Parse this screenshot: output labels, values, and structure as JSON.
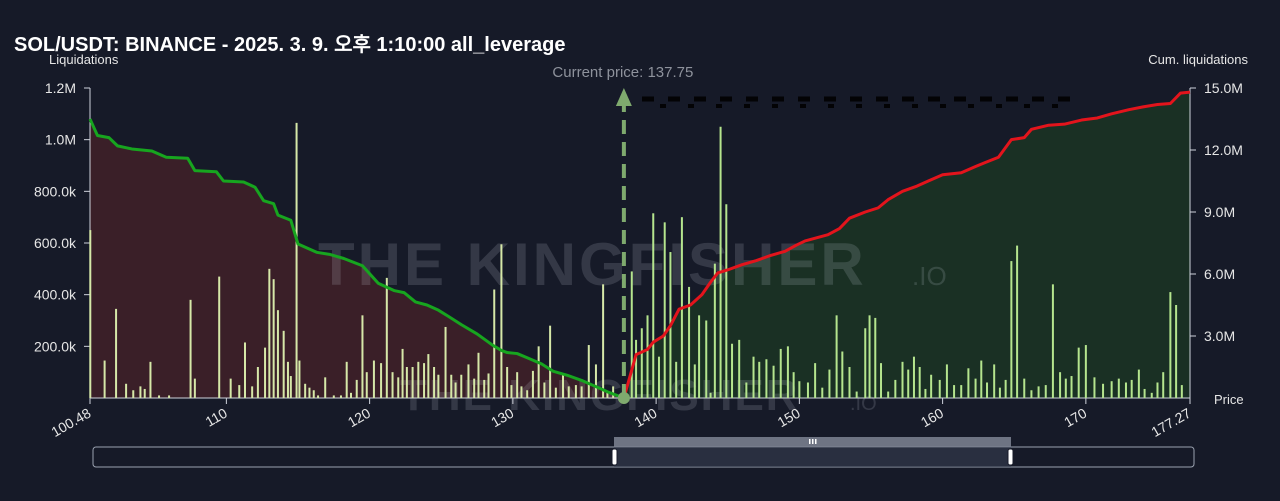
{
  "header": {
    "title": "SOL/USDT: BINANCE - 2025. 3. 9. 오후 1:10:00 all_leverage"
  },
  "watermark": {
    "brand": "THE KINGFISHER",
    "suffix": ".IO"
  },
  "colors": {
    "background": "#161a28",
    "bars": "#d6e8a8",
    "bars_right": "#b5e58e",
    "cum_left": "#17a51f",
    "cum_right": "#e3141c",
    "fill_left": "#3a1f28",
    "fill_right": "#1a3024",
    "price_line": "#7faa6e"
  },
  "chart_data": {
    "type": "bar",
    "title": "SOL/USDT: BINANCE - 2025. 3. 9. 오후 1:10:00 all_leverage",
    "ylabel": "Liquidations",
    "y2label": "Cum. liquidations",
    "xlabel": "Price",
    "xlim": [
      100.48,
      177.27
    ],
    "ylim": [
      0,
      1200000
    ],
    "y2lim": [
      0,
      15000000
    ],
    "yticks": [
      200000,
      400000,
      600000,
      800000,
      1000000,
      1200000
    ],
    "ytick_labels": [
      "200.0k",
      "400.0k",
      "600.0k",
      "800.0k",
      "1.0M",
      "1.2M"
    ],
    "y2ticks": [
      3000000,
      6000000,
      9000000,
      12000000,
      15000000
    ],
    "y2tick_labels": [
      "3.0M",
      "6.0M",
      "9.0M",
      "12.0M",
      "15.0M"
    ],
    "xticks": [
      110,
      120,
      130,
      140,
      150,
      160,
      170
    ],
    "xtick_labels": [
      "110",
      "120",
      "130",
      "140",
      "150",
      "160",
      "170"
    ],
    "x_end_labels": [
      "100.48",
      "177.27"
    ],
    "current_price": 137.75,
    "current_price_label": "Current price: 137.75",
    "bars": [
      [
        100.5,
        650000
      ],
      [
        101.5,
        145000
      ],
      [
        102.3,
        345000
      ],
      [
        103.0,
        55000
      ],
      [
        103.5,
        30000
      ],
      [
        104.0,
        45000
      ],
      [
        104.3,
        35000
      ],
      [
        104.7,
        140000
      ],
      [
        105.3,
        10000
      ],
      [
        106.0,
        10000
      ],
      [
        107.5,
        380000
      ],
      [
        107.8,
        75000
      ],
      [
        109.5,
        470000
      ],
      [
        110.3,
        75000
      ],
      [
        110.9,
        50000
      ],
      [
        111.3,
        215000
      ],
      [
        111.8,
        45000
      ],
      [
        112.2,
        120000
      ],
      [
        112.7,
        195000
      ],
      [
        113.0,
        500000
      ],
      [
        113.3,
        460000
      ],
      [
        113.6,
        340000
      ],
      [
        114.0,
        260000
      ],
      [
        114.3,
        140000
      ],
      [
        114.5,
        85000
      ],
      [
        114.9,
        1065000
      ],
      [
        115.1,
        145000
      ],
      [
        115.5,
        55000
      ],
      [
        115.8,
        40000
      ],
      [
        116.1,
        30000
      ],
      [
        116.4,
        10000
      ],
      [
        116.9,
        80000
      ],
      [
        117.5,
        10000
      ],
      [
        118.0,
        10000
      ],
      [
        118.4,
        140000
      ],
      [
        118.7,
        20000
      ],
      [
        119.1,
        70000
      ],
      [
        119.5,
        320000
      ],
      [
        119.8,
        100000
      ],
      [
        120.3,
        145000
      ],
      [
        120.8,
        135000
      ],
      [
        121.2,
        465000
      ],
      [
        121.6,
        100000
      ],
      [
        122.0,
        80000
      ],
      [
        122.3,
        190000
      ],
      [
        122.6,
        120000
      ],
      [
        123.0,
        120000
      ],
      [
        123.4,
        140000
      ],
      [
        123.8,
        135000
      ],
      [
        124.1,
        170000
      ],
      [
        124.5,
        120000
      ],
      [
        124.8,
        90000
      ],
      [
        125.3,
        275000
      ],
      [
        125.7,
        90000
      ],
      [
        126.0,
        60000
      ],
      [
        126.4,
        90000
      ],
      [
        126.9,
        130000
      ],
      [
        127.3,
        75000
      ],
      [
        127.6,
        175000
      ],
      [
        128.0,
        70000
      ],
      [
        128.3,
        95000
      ],
      [
        128.7,
        420000
      ],
      [
        129.2,
        595000
      ],
      [
        129.6,
        120000
      ],
      [
        129.9,
        50000
      ],
      [
        130.3,
        100000
      ],
      [
        130.6,
        45000
      ],
      [
        131.0,
        30000
      ],
      [
        131.4,
        105000
      ],
      [
        131.8,
        200000
      ],
      [
        132.2,
        60000
      ],
      [
        132.6,
        280000
      ],
      [
        133.0,
        40000
      ],
      [
        133.5,
        90000
      ],
      [
        133.9,
        45000
      ],
      [
        134.4,
        50000
      ],
      [
        134.8,
        45000
      ],
      [
        135.3,
        205000
      ],
      [
        135.8,
        130000
      ],
      [
        136.3,
        440000
      ],
      [
        136.6,
        20000
      ],
      [
        137.0,
        45000
      ],
      [
        137.6,
        20000
      ],
      [
        137.9,
        20000
      ],
      [
        138.3,
        490000
      ],
      [
        138.6,
        225000
      ],
      [
        139.0,
        270000
      ],
      [
        139.4,
        320000
      ],
      [
        139.8,
        715000
      ],
      [
        140.2,
        160000
      ],
      [
        140.6,
        680000
      ],
      [
        141.0,
        565000
      ],
      [
        141.4,
        140000
      ],
      [
        141.8,
        700000
      ],
      [
        142.3,
        430000
      ],
      [
        142.7,
        130000
      ],
      [
        143.0,
        320000
      ],
      [
        143.5,
        300000
      ],
      [
        143.8,
        20000
      ],
      [
        144.1,
        520000
      ],
      [
        144.5,
        1050000
      ],
      [
        144.9,
        750000
      ],
      [
        145.3,
        210000
      ],
      [
        145.8,
        225000
      ],
      [
        146.3,
        60000
      ],
      [
        146.8,
        160000
      ],
      [
        147.2,
        140000
      ],
      [
        147.7,
        150000
      ],
      [
        148.2,
        125000
      ],
      [
        148.7,
        190000
      ],
      [
        149.2,
        200000
      ],
      [
        149.6,
        100000
      ],
      [
        150.0,
        65000
      ],
      [
        150.6,
        60000
      ],
      [
        151.1,
        135000
      ],
      [
        151.6,
        40000
      ],
      [
        152.1,
        110000
      ],
      [
        152.6,
        320000
      ],
      [
        153.0,
        180000
      ],
      [
        153.5,
        120000
      ],
      [
        154.0,
        25000
      ],
      [
        154.6,
        270000
      ],
      [
        154.9,
        320000
      ],
      [
        155.3,
        310000
      ],
      [
        155.7,
        135000
      ],
      [
        156.2,
        25000
      ],
      [
        156.7,
        70000
      ],
      [
        157.2,
        140000
      ],
      [
        157.6,
        110000
      ],
      [
        158.0,
        160000
      ],
      [
        158.4,
        120000
      ],
      [
        158.8,
        35000
      ],
      [
        159.2,
        90000
      ],
      [
        159.8,
        70000
      ],
      [
        160.3,
        130000
      ],
      [
        160.8,
        50000
      ],
      [
        161.3,
        50000
      ],
      [
        161.8,
        115000
      ],
      [
        162.3,
        75000
      ],
      [
        162.7,
        145000
      ],
      [
        163.1,
        60000
      ],
      [
        163.6,
        130000
      ],
      [
        164.0,
        40000
      ],
      [
        164.4,
        70000
      ],
      [
        164.8,
        530000
      ],
      [
        165.2,
        590000
      ],
      [
        165.7,
        75000
      ],
      [
        166.2,
        30000
      ],
      [
        166.7,
        45000
      ],
      [
        167.2,
        50000
      ],
      [
        167.7,
        440000
      ],
      [
        168.2,
        100000
      ],
      [
        168.6,
        75000
      ],
      [
        169.0,
        85000
      ],
      [
        169.5,
        195000
      ],
      [
        170.0,
        205000
      ],
      [
        170.6,
        80000
      ],
      [
        171.2,
        55000
      ],
      [
        171.8,
        65000
      ],
      [
        172.3,
        75000
      ],
      [
        172.8,
        60000
      ],
      [
        173.2,
        70000
      ],
      [
        173.7,
        110000
      ],
      [
        174.1,
        35000
      ],
      [
        174.6,
        20000
      ],
      [
        175.0,
        60000
      ],
      [
        175.4,
        100000
      ],
      [
        175.9,
        410000
      ],
      [
        176.3,
        360000
      ],
      [
        176.7,
        50000
      ]
    ],
    "cum_left": [
      [
        100.48,
        13500000
      ],
      [
        101.0,
        12700000
      ],
      [
        101.8,
        12600000
      ],
      [
        102.4,
        12200000
      ],
      [
        103.4,
        12050000
      ],
      [
        104.8,
        11950000
      ],
      [
        105.8,
        11650000
      ],
      [
        107.3,
        11600000
      ],
      [
        107.8,
        11000000
      ],
      [
        109.3,
        10950000
      ],
      [
        109.8,
        10500000
      ],
      [
        111.2,
        10450000
      ],
      [
        112.0,
        10200000
      ],
      [
        112.6,
        9550000
      ],
      [
        113.3,
        9400000
      ],
      [
        113.6,
        8850000
      ],
      [
        114.5,
        8600000
      ],
      [
        115.0,
        7450000
      ],
      [
        116.3,
        7050000
      ],
      [
        117.2,
        6950000
      ],
      [
        118.2,
        6750000
      ],
      [
        119.5,
        6400000
      ],
      [
        120.6,
        5550000
      ],
      [
        121.7,
        5200000
      ],
      [
        122.4,
        5100000
      ],
      [
        123.2,
        4650000
      ],
      [
        124.0,
        4500000
      ],
      [
        124.8,
        4250000
      ],
      [
        125.5,
        3950000
      ],
      [
        126.4,
        3550000
      ],
      [
        127.5,
        3100000
      ],
      [
        128.6,
        2550000
      ],
      [
        129.2,
        2300000
      ],
      [
        129.6,
        2200000
      ],
      [
        130.3,
        2150000
      ],
      [
        131.0,
        1950000
      ],
      [
        132.0,
        1650000
      ],
      [
        132.8,
        1300000
      ],
      [
        133.8,
        1100000
      ],
      [
        134.8,
        850000
      ],
      [
        135.8,
        550000
      ],
      [
        136.6,
        300000
      ],
      [
        137.75,
        0
      ]
    ],
    "cum_right": [
      [
        137.75,
        0
      ],
      [
        138.6,
        2100000
      ],
      [
        139.4,
        2350000
      ],
      [
        139.8,
        2700000
      ],
      [
        140.5,
        3000000
      ],
      [
        141.0,
        3500000
      ],
      [
        141.6,
        4300000
      ],
      [
        142.4,
        4500000
      ],
      [
        143.2,
        5000000
      ],
      [
        143.8,
        5600000
      ],
      [
        144.3,
        6050000
      ],
      [
        145.0,
        6200000
      ],
      [
        146.0,
        6450000
      ],
      [
        147.0,
        6650000
      ],
      [
        148.0,
        6900000
      ],
      [
        149.0,
        7100000
      ],
      [
        149.8,
        7400000
      ],
      [
        150.4,
        7600000
      ],
      [
        151.2,
        7750000
      ],
      [
        152.0,
        7900000
      ],
      [
        152.8,
        8200000
      ],
      [
        153.5,
        8700000
      ],
      [
        154.6,
        9000000
      ],
      [
        155.5,
        9200000
      ],
      [
        156.2,
        9600000
      ],
      [
        157.2,
        10000000
      ],
      [
        158.2,
        10250000
      ],
      [
        159.0,
        10500000
      ],
      [
        160.0,
        10800000
      ],
      [
        161.3,
        10900000
      ],
      [
        162.3,
        11200000
      ],
      [
        163.0,
        11400000
      ],
      [
        163.9,
        11650000
      ],
      [
        164.8,
        12500000
      ],
      [
        165.7,
        12600000
      ],
      [
        166.2,
        13000000
      ],
      [
        167.4,
        13200000
      ],
      [
        168.5,
        13250000
      ],
      [
        169.7,
        13450000
      ],
      [
        170.8,
        13550000
      ],
      [
        171.8,
        13750000
      ],
      [
        173.0,
        13950000
      ],
      [
        174.1,
        14100000
      ],
      [
        175.0,
        14200000
      ],
      [
        175.9,
        14250000
      ],
      [
        176.6,
        14750000
      ],
      [
        177.27,
        14800000
      ]
    ]
  }
}
